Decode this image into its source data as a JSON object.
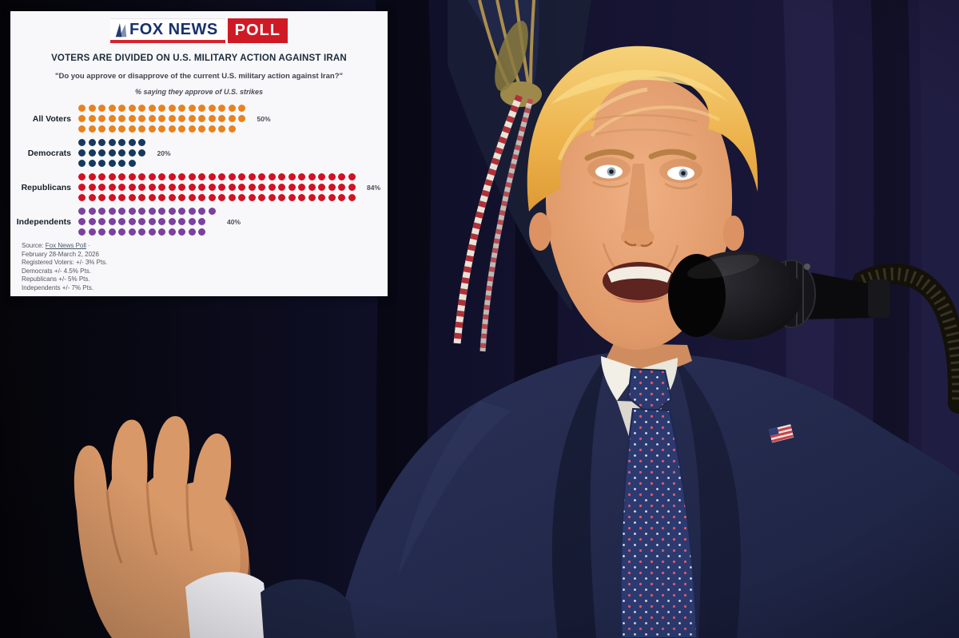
{
  "panel": {
    "logo": {
      "brand": "FOX NEWS",
      "suffix": "POLL"
    },
    "title": "VOTERS ARE DIVIDED ON U.S. MILITARY ACTION AGAINST IRAN",
    "subtitle": "\"Do you approve or disapprove of the current U.S. military action against Iran?\"",
    "note": "% saying they approve of U.S. strikes",
    "source": {
      "prefix": "Source: ",
      "link": "Fox News Poll",
      "after_link": " ·",
      "lines": [
        "February 28-March 2, 2026",
        "Registered Voters: +/- 3% Pts.",
        "Democrats +/- 4.5% Pts.",
        "Republicans +/- 5% Pts.",
        "Independents +/- 7% Pts."
      ]
    }
  },
  "chart_data": {
    "type": "pictogram-dot-plot",
    "title": "VOTERS ARE DIVIDED ON U.S. MILITARY ACTION AGAINST IRAN",
    "subtitle": "\"Do you approve or disapprove of the current U.S. military action against Iran?\"",
    "note": "% saying they approve of U.S. strikes",
    "categories": [
      "All Voters",
      "Democrats",
      "Republicans",
      "Independents"
    ],
    "values": [
      50,
      20,
      84,
      40
    ],
    "value_labels": [
      "50%",
      "20%",
      "84%",
      "40%"
    ],
    "unit": "percent, one dot = 1%",
    "dot_rows_per_group": 3,
    "colors": [
      "#E8821E",
      "#17395F",
      "#D11224",
      "#7D3FA0"
    ],
    "legend_position": "none",
    "grid": false
  },
  "brand_colors": {
    "fox_blue": "#17316b",
    "fox_red": "#cf1a25",
    "panel_bg": "#f8f8fa"
  },
  "photo_colors": {
    "curtain_dark": "#07060d",
    "curtain_navy": "#1a1738",
    "suit_navy": "#242b50",
    "tie_navy": "#2c3a70",
    "shirt_white": "#f1efe6",
    "skin": "#e0a173",
    "hair_gold": "#f0c25c",
    "cord_red": "#b03038",
    "tassel_gold": "#b99a4e",
    "mic_black": "#0b0b0d"
  }
}
